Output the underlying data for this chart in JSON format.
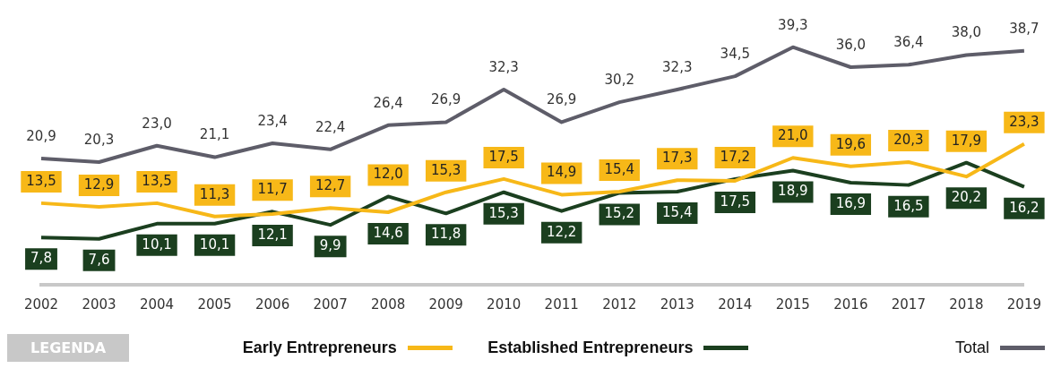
{
  "chart_data": {
    "type": "line",
    "legend_title": "LEGENDA",
    "legend": "bottom",
    "marker": "none",
    "line_style": "solid",
    "grid": false,
    "categories": [
      "2002",
      "2003",
      "2004",
      "2005",
      "2006",
      "2007",
      "2008",
      "2009",
      "2010",
      "2011",
      "2012",
      "2013",
      "2014",
      "2015",
      "2016",
      "2017",
      "2018",
      "2019"
    ],
    "series": [
      {
        "name": "Early Entrepreneurs",
        "color": "#f7b818",
        "values": [
          13.5,
          12.9,
          13.5,
          11.3,
          11.7,
          12.7,
          12.0,
          15.3,
          17.5,
          14.9,
          15.4,
          17.3,
          17.2,
          21.0,
          19.6,
          20.3,
          17.9,
          23.3
        ],
        "value_labels": [
          "13,5",
          "12,9",
          "13,5",
          "11,3",
          "11,7",
          "12,7",
          "12,0",
          "15,3",
          "17,5",
          "14,9",
          "15,4",
          "17,3",
          "17,2",
          "21,0",
          "19,6",
          "20,3",
          "17,9",
          "23,3"
        ]
      },
      {
        "name": "Established Entrepreneurs",
        "color": "#1b3f1f",
        "values": [
          7.8,
          7.6,
          10.1,
          10.1,
          12.1,
          9.9,
          14.6,
          11.8,
          15.3,
          12.2,
          15.2,
          15.4,
          17.5,
          18.9,
          16.9,
          16.5,
          20.2,
          16.2
        ],
        "value_labels": [
          "7,8",
          "7,6",
          "10,1",
          "10,1",
          "12,1",
          "9,9",
          "14,6",
          "11,8",
          "15,3",
          "12,2",
          "15,2",
          "15,4",
          "17,5",
          "18,9",
          "16,9",
          "16,5",
          "20,2",
          "16,2"
        ]
      },
      {
        "name": "Total",
        "color": "#5e5d69",
        "values": [
          20.9,
          20.3,
          23.0,
          21.1,
          23.4,
          22.4,
          26.4,
          26.9,
          32.3,
          26.9,
          30.2,
          32.3,
          34.5,
          39.3,
          36.0,
          36.4,
          38.0,
          38.7
        ],
        "value_labels": [
          "20,9",
          "20,3",
          "23,0",
          "21,1",
          "23,4",
          "22,4",
          "26,4",
          "26,9",
          "32,3",
          "26,9",
          "30,2",
          "32,3",
          "34,5",
          "39,3",
          "36,0",
          "36,4",
          "38,0",
          "38,7"
        ]
      }
    ]
  }
}
